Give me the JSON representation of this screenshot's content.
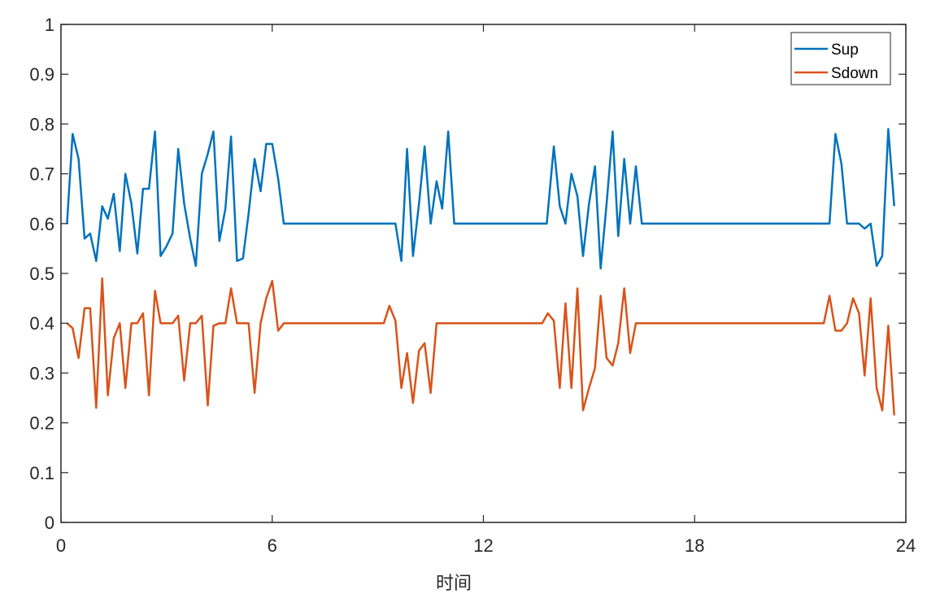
{
  "chart_data": {
    "type": "line",
    "xlabel": "时间",
    "ylabel": "",
    "title": "",
    "xlim": [
      0,
      24
    ],
    "ylim": [
      0,
      1
    ],
    "xticks": [
      0,
      6,
      12,
      18,
      24
    ],
    "xtick_labels": [
      "0",
      "6",
      "12",
      "18",
      "24"
    ],
    "yticks": [
      0,
      0.1,
      0.2,
      0.3,
      0.4,
      0.5,
      0.6,
      0.7,
      0.8,
      0.9,
      1
    ],
    "ytick_labels": [
      "0",
      "0.1",
      "0.2",
      "0.3",
      "0.4",
      "0.5",
      "0.6",
      "0.7",
      "0.8",
      "0.9",
      "1"
    ],
    "grid": false,
    "legend_position": "top-right",
    "series": [
      {
        "name": "Sup",
        "color": "#0072BD",
        "points": [
          [
            0.17,
            0.6
          ],
          [
            0.33,
            0.78
          ],
          [
            0.5,
            0.73
          ],
          [
            0.67,
            0.57
          ],
          [
            0.83,
            0.58
          ],
          [
            1.0,
            0.525
          ],
          [
            1.17,
            0.635
          ],
          [
            1.33,
            0.61
          ],
          [
            1.5,
            0.66
          ],
          [
            1.67,
            0.545
          ],
          [
            1.83,
            0.7
          ],
          [
            2.0,
            0.64
          ],
          [
            2.17,
            0.54
          ],
          [
            2.33,
            0.67
          ],
          [
            2.5,
            0.67
          ],
          [
            2.67,
            0.785
          ],
          [
            2.83,
            0.535
          ],
          [
            3.0,
            0.555
          ],
          [
            3.17,
            0.58
          ],
          [
            3.33,
            0.75
          ],
          [
            3.5,
            0.64
          ],
          [
            3.67,
            0.57
          ],
          [
            3.83,
            0.515
          ],
          [
            4.0,
            0.7
          ],
          [
            4.17,
            0.74
          ],
          [
            4.33,
            0.785
          ],
          [
            4.5,
            0.565
          ],
          [
            4.67,
            0.63
          ],
          [
            4.83,
            0.775
          ],
          [
            5.0,
            0.525
          ],
          [
            5.17,
            0.53
          ],
          [
            5.33,
            0.62
          ],
          [
            5.5,
            0.73
          ],
          [
            5.67,
            0.665
          ],
          [
            5.83,
            0.76
          ],
          [
            6.0,
            0.76
          ],
          [
            6.17,
            0.69
          ],
          [
            6.33,
            0.6
          ],
          [
            6.5,
            0.6
          ],
          [
            9.5,
            0.6
          ],
          [
            9.67,
            0.525
          ],
          [
            9.83,
            0.75
          ],
          [
            10.0,
            0.535
          ],
          [
            10.17,
            0.64
          ],
          [
            10.33,
            0.755
          ],
          [
            10.5,
            0.6
          ],
          [
            10.67,
            0.685
          ],
          [
            10.83,
            0.63
          ],
          [
            11.0,
            0.785
          ],
          [
            11.17,
            0.6
          ],
          [
            11.33,
            0.6
          ],
          [
            13.8,
            0.6
          ],
          [
            14.0,
            0.755
          ],
          [
            14.17,
            0.635
          ],
          [
            14.33,
            0.6
          ],
          [
            14.5,
            0.7
          ],
          [
            14.67,
            0.655
          ],
          [
            14.83,
            0.535
          ],
          [
            15.0,
            0.64
          ],
          [
            15.17,
            0.715
          ],
          [
            15.33,
            0.51
          ],
          [
            15.5,
            0.64
          ],
          [
            15.67,
            0.785
          ],
          [
            15.83,
            0.575
          ],
          [
            16.0,
            0.73
          ],
          [
            16.17,
            0.6
          ],
          [
            16.33,
            0.715
          ],
          [
            16.5,
            0.6
          ],
          [
            16.67,
            0.6
          ],
          [
            21.83,
            0.6
          ],
          [
            22.0,
            0.78
          ],
          [
            22.17,
            0.72
          ],
          [
            22.33,
            0.6
          ],
          [
            22.5,
            0.6
          ],
          [
            22.67,
            0.6
          ],
          [
            22.83,
            0.59
          ],
          [
            23.0,
            0.6
          ],
          [
            23.17,
            0.515
          ],
          [
            23.33,
            0.535
          ],
          [
            23.5,
            0.79
          ],
          [
            23.67,
            0.635
          ]
        ]
      },
      {
        "name": "Sdown",
        "color": "#D95319",
        "points": [
          [
            0.17,
            0.4
          ],
          [
            0.33,
            0.39
          ],
          [
            0.5,
            0.33
          ],
          [
            0.67,
            0.43
          ],
          [
            0.83,
            0.43
          ],
          [
            1.0,
            0.23
          ],
          [
            1.17,
            0.49
          ],
          [
            1.33,
            0.255
          ],
          [
            1.5,
            0.37
          ],
          [
            1.67,
            0.4
          ],
          [
            1.83,
            0.27
          ],
          [
            2.0,
            0.4
          ],
          [
            2.17,
            0.4
          ],
          [
            2.33,
            0.42
          ],
          [
            2.5,
            0.255
          ],
          [
            2.67,
            0.465
          ],
          [
            2.83,
            0.4
          ],
          [
            3.0,
            0.4
          ],
          [
            3.17,
            0.4
          ],
          [
            3.33,
            0.415
          ],
          [
            3.5,
            0.285
          ],
          [
            3.67,
            0.4
          ],
          [
            3.83,
            0.4
          ],
          [
            4.0,
            0.415
          ],
          [
            4.17,
            0.235
          ],
          [
            4.33,
            0.395
          ],
          [
            4.5,
            0.4
          ],
          [
            4.67,
            0.4
          ],
          [
            4.83,
            0.47
          ],
          [
            5.0,
            0.4
          ],
          [
            5.17,
            0.4
          ],
          [
            5.33,
            0.4
          ],
          [
            5.5,
            0.26
          ],
          [
            5.67,
            0.4
          ],
          [
            5.83,
            0.45
          ],
          [
            6.0,
            0.485
          ],
          [
            6.17,
            0.385
          ],
          [
            6.33,
            0.4
          ],
          [
            6.5,
            0.4
          ],
          [
            9.17,
            0.4
          ],
          [
            9.33,
            0.435
          ],
          [
            9.5,
            0.405
          ],
          [
            9.67,
            0.27
          ],
          [
            9.83,
            0.34
          ],
          [
            10.0,
            0.24
          ],
          [
            10.17,
            0.345
          ],
          [
            10.33,
            0.36
          ],
          [
            10.5,
            0.26
          ],
          [
            10.67,
            0.4
          ],
          [
            10.83,
            0.4
          ],
          [
            13.67,
            0.4
          ],
          [
            13.83,
            0.42
          ],
          [
            14.0,
            0.405
          ],
          [
            14.17,
            0.27
          ],
          [
            14.33,
            0.44
          ],
          [
            14.5,
            0.27
          ],
          [
            14.67,
            0.47
          ],
          [
            14.83,
            0.225
          ],
          [
            15.0,
            0.27
          ],
          [
            15.17,
            0.31
          ],
          [
            15.33,
            0.455
          ],
          [
            15.5,
            0.33
          ],
          [
            15.67,
            0.315
          ],
          [
            15.83,
            0.36
          ],
          [
            16.0,
            0.47
          ],
          [
            16.17,
            0.34
          ],
          [
            16.33,
            0.4
          ],
          [
            16.5,
            0.4
          ],
          [
            21.67,
            0.4
          ],
          [
            21.83,
            0.455
          ],
          [
            22.0,
            0.385
          ],
          [
            22.17,
            0.385
          ],
          [
            22.33,
            0.4
          ],
          [
            22.5,
            0.45
          ],
          [
            22.67,
            0.42
          ],
          [
            22.83,
            0.295
          ],
          [
            23.0,
            0.45
          ],
          [
            23.17,
            0.27
          ],
          [
            23.33,
            0.225
          ],
          [
            23.5,
            0.395
          ],
          [
            23.67,
            0.215
          ]
        ]
      }
    ]
  }
}
